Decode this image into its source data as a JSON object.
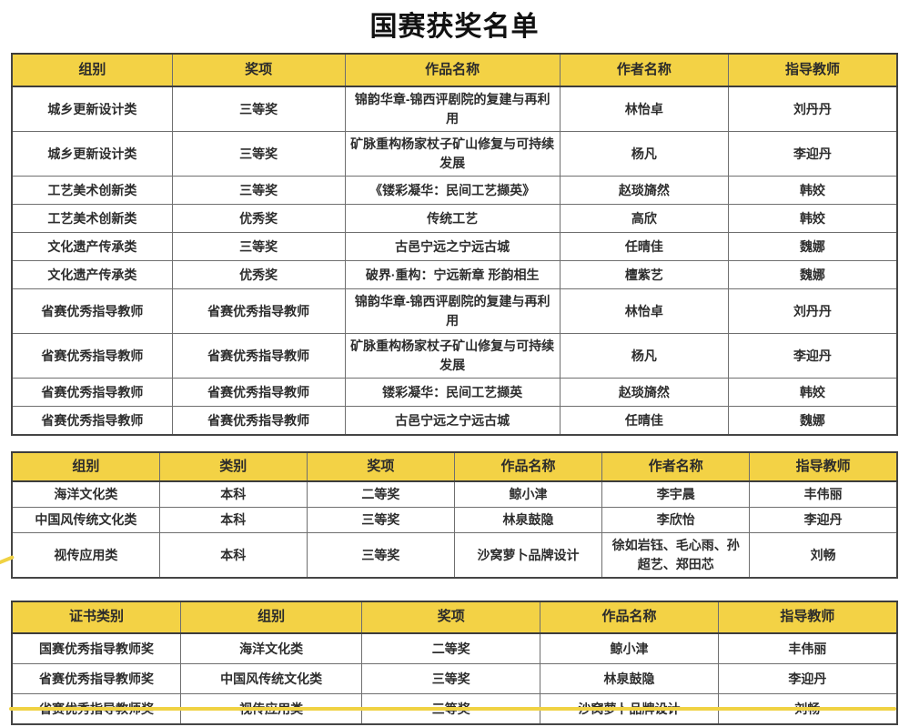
{
  "title": "国赛获奖名单",
  "colors": {
    "header_bg": "#F3D245",
    "accent_line": "#F0D243",
    "border_outer": "#454545",
    "border_inner": "#6F6F6F",
    "text": "#2D2D2D"
  },
  "table1": {
    "headers": [
      "组别",
      "奖项",
      "作品名称",
      "作者名称",
      "指导教师"
    ],
    "rows": [
      [
        "城乡更新设计类",
        "三等奖",
        "锦韵华章-锦西评剧院的复建与再利用",
        "林怡卓",
        "刘丹丹"
      ],
      [
        "城乡更新设计类",
        "三等奖",
        "矿脉重构杨家杖子矿山修复与可持续发展",
        "杨凡",
        "李迎丹"
      ],
      [
        "工艺美术创新类",
        "三等奖",
        "《镂彩凝华：民间工艺撷英》",
        "赵琰旖然",
        "韩姣"
      ],
      [
        "工艺美术创新类",
        "优秀奖",
        "传统工艺",
        "高欣",
        "韩姣"
      ],
      [
        "文化遗产传承类",
        "三等奖",
        "古邑宁远之宁远古城",
        "任晴佳",
        "魏娜"
      ],
      [
        "文化遗产传承类",
        "优秀奖",
        "破界·重构：宁远新章 形韵相生",
        "檀紫艺",
        "魏娜"
      ],
      [
        "省赛优秀指导教师",
        "省赛优秀指导教师",
        "锦韵华章-锦西评剧院的复建与再利用",
        "林怡卓",
        "刘丹丹"
      ],
      [
        "省赛优秀指导教师",
        "省赛优秀指导教师",
        "矿脉重构杨家杖子矿山修复与可持续发展",
        "杨凡",
        "李迎丹"
      ],
      [
        "省赛优秀指导教师",
        "省赛优秀指导教师",
        "镂彩凝华：民间工艺撷英",
        "赵琰旖然",
        "韩姣"
      ],
      [
        "省赛优秀指导教师",
        "省赛优秀指导教师",
        "古邑宁远之宁远古城",
        "任晴佳",
        "魏娜"
      ]
    ]
  },
  "table2": {
    "headers": [
      "组别",
      "类别",
      "奖项",
      "作品名称",
      "作者名称",
      "指导教师"
    ],
    "rows": [
      [
        "海洋文化类",
        "本科",
        "二等奖",
        "鲸小津",
        "李宇晨",
        "丰伟丽"
      ],
      [
        "中国风传统文化类",
        "本科",
        "三等奖",
        "林泉鼓隐",
        "李欣怡",
        "李迎丹"
      ],
      [
        "视传应用类",
        "本科",
        "三等奖",
        "沙窝萝卜品牌设计",
        "徐如岩钰、毛心雨、孙超艺、郑田芯",
        "刘畅"
      ]
    ]
  },
  "table3": {
    "headers": [
      "证书类别",
      "组别",
      "奖项",
      "作品名称",
      "指导教师"
    ],
    "rows": [
      [
        "国赛优秀指导教师奖",
        "海洋文化类",
        "二等奖",
        "鲸小津",
        "丰伟丽"
      ],
      [
        "省赛优秀指导教师奖",
        "中国风传统文化类",
        "三等奖",
        "林泉鼓隐",
        "李迎丹"
      ],
      [
        "省赛优秀指导教师奖",
        "视传应用类",
        "三等奖",
        "沙窝萝卜品牌设计",
        "刘畅"
      ]
    ]
  }
}
